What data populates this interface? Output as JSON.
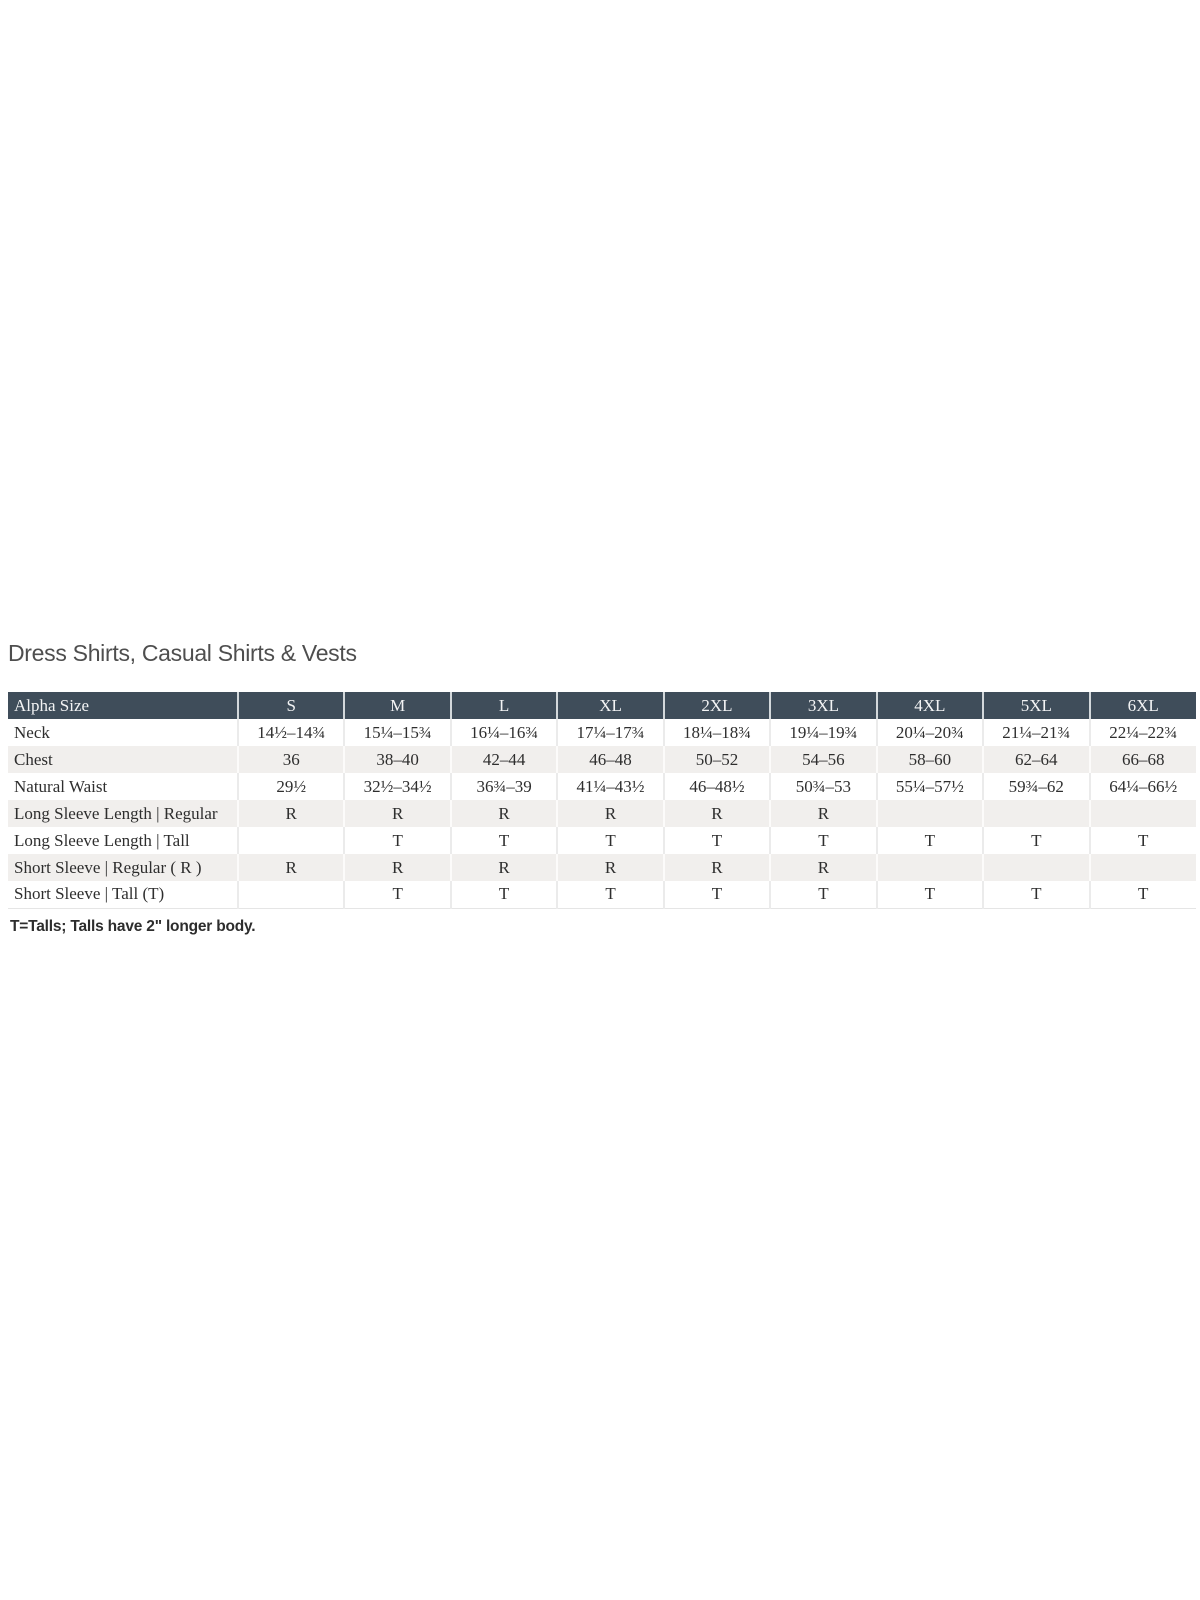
{
  "title": "Dress Shirts, Casual Shirts & Vests",
  "footnote": "T=Talls; Talls have 2\" longer body.",
  "colors": {
    "header_bg": "#3f4d5a",
    "header_text": "#f3f4f5",
    "row_bg": "#ffffff",
    "row_alt_bg": "#f1efed",
    "cell_text": "#2e2e2e",
    "title_text": "#4e4e4e"
  },
  "table": {
    "columns": [
      "Alpha Size",
      "S",
      "M",
      "L",
      "XL",
      "2XL",
      "3XL",
      "4XL",
      "5XL",
      "6XL"
    ],
    "rows": [
      {
        "label": "Neck",
        "values": [
          "14½–14¾",
          "15¼–15¾",
          "16¼–16¾",
          "17¼–17¾",
          "18¼–18¾",
          "19¼–19¾",
          "20¼–20¾",
          "21¼–21¾",
          "22¼–22¾"
        ]
      },
      {
        "label": "Chest",
        "values": [
          "36",
          "38–40",
          "42–44",
          "46–48",
          "50–52",
          "54–56",
          "58–60",
          "62–64",
          "66–68"
        ]
      },
      {
        "label": "Natural Waist",
        "values": [
          "29½",
          "32½–34½",
          "36¾–39",
          "41¼–43½",
          "46–48½",
          "50¾–53",
          "55¼–57½",
          "59¾–62",
          "64¼–66½"
        ]
      },
      {
        "label": "Long Sleeve Length | Regular",
        "values": [
          "R",
          "R",
          "R",
          "R",
          "R",
          "R",
          "",
          "",
          ""
        ]
      },
      {
        "label": "Long Sleeve Length | Tall",
        "values": [
          "",
          "T",
          "T",
          "T",
          "T",
          "T",
          "T",
          "T",
          "T"
        ]
      },
      {
        "label": "Short Sleeve | Regular ( R )",
        "values": [
          "R",
          "R",
          "R",
          "R",
          "R",
          "R",
          "",
          "",
          ""
        ]
      },
      {
        "label": "Short Sleeve | Tall (T)",
        "values": [
          "",
          "T",
          "T",
          "T",
          "T",
          "T",
          "T",
          "T",
          "T"
        ]
      }
    ]
  }
}
